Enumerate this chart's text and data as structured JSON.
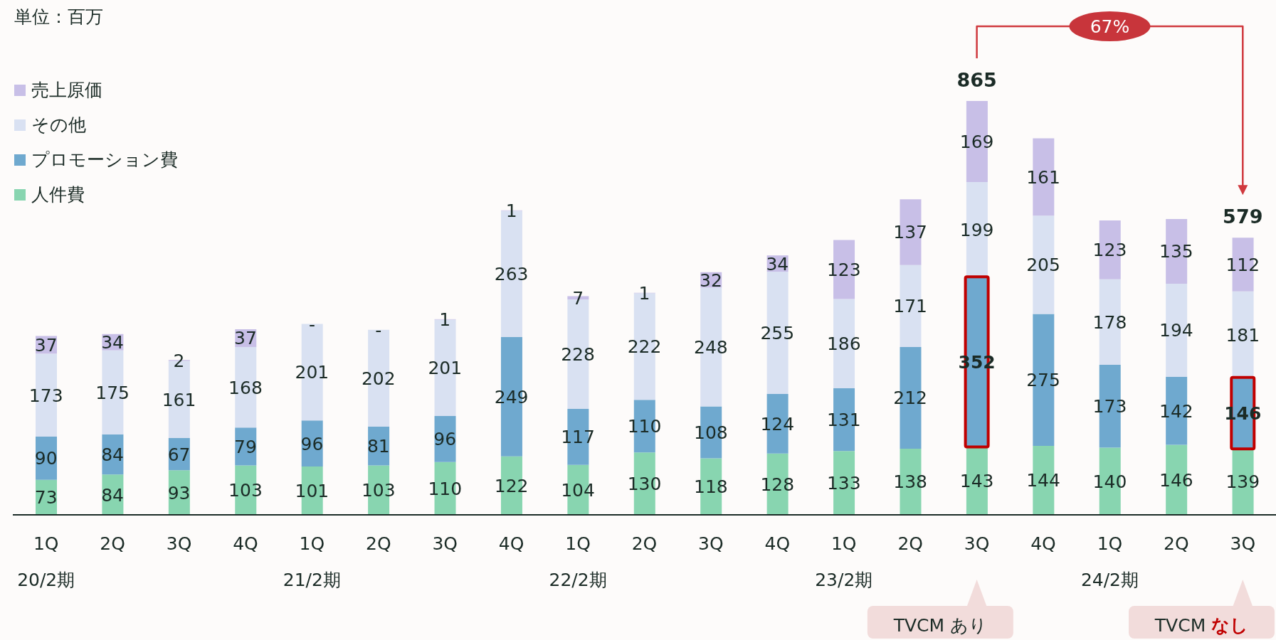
{
  "chart_data": {
    "type": "bar",
    "title": "単位：百万",
    "stacked": true,
    "legend": "top left",
    "tick_labels": "x",
    "data_labels": true,
    "categories": [
      "1Q\n20/2期",
      "2Q",
      "3Q",
      "4Q",
      "1Q\n21/2期",
      "2Q",
      "3Q",
      "4Q",
      "1Q\n22/2期",
      "2Q",
      "3Q",
      "4Q",
      "1Q\n23/2期",
      "2Q",
      "3Q",
      "4Q",
      "1Q\n24/2期",
      "2Q",
      "3Q"
    ],
    "series": [
      {
        "name": "人件費",
        "color": "#88d5b0",
        "values": [
          73,
          84,
          93,
          103,
          101,
          103,
          110,
          122,
          104,
          130,
          118,
          128,
          133,
          138,
          143,
          144,
          140,
          146,
          139
        ]
      },
      {
        "name": "プロモーション費",
        "color": "#6fa9cf",
        "values": [
          90,
          84,
          67,
          79,
          96,
          81,
          96,
          249,
          117,
          110,
          108,
          124,
          131,
          212,
          352,
          275,
          173,
          142,
          146
        ]
      },
      {
        "name": "その他",
        "color": "#d9e1f2",
        "values": [
          173,
          175,
          161,
          168,
          201,
          202,
          201,
          263,
          228,
          222,
          248,
          255,
          186,
          171,
          199,
          205,
          178,
          194,
          181
        ]
      },
      {
        "name": "売上原価",
        "color": "#c8bfe7",
        "values": [
          37,
          34,
          2,
          37,
          0,
          0,
          1,
          1,
          7,
          1,
          32,
          34,
          123,
          137,
          169,
          161,
          123,
          135,
          112
        ],
        "value_labels": [
          "37",
          "34",
          "2",
          "37",
          "-",
          "-",
          "1",
          "1",
          "7",
          "1",
          "32",
          "34",
          "123",
          "137",
          "169",
          "161",
          "123",
          "135",
          "112"
        ]
      }
    ],
    "totals": [
      null,
      null,
      null,
      null,
      null,
      null,
      null,
      null,
      null,
      null,
      null,
      null,
      null,
      null,
      "865",
      null,
      null,
      null,
      "579"
    ],
    "annotations": [
      "67%",
      "TVCM あり",
      "TVCM なし"
    ]
  }
}
